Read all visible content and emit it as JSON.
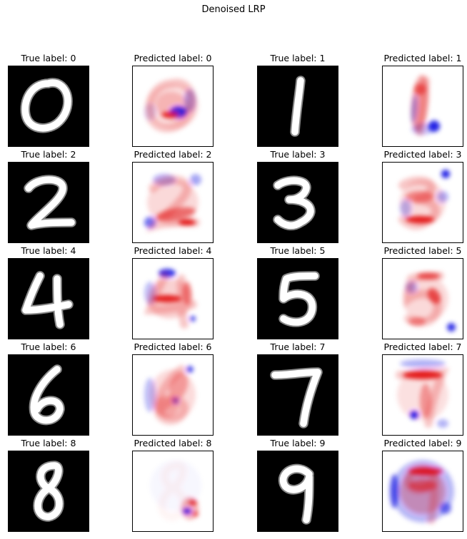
{
  "chart_data": {
    "type": "image-grid",
    "title": "Denoised LRP",
    "rows": [
      {
        "true_label": "True label: 0",
        "predicted_label": "Predicted label: 0",
        "true_image": "digit-0-grayscale",
        "heatmap": "lrp-heatmap-0"
      },
      {
        "true_label": "True label: 1",
        "predicted_label": "Predicted label: 1",
        "true_image": "digit-1-grayscale",
        "heatmap": "lrp-heatmap-1"
      },
      {
        "true_label": "True label: 2",
        "predicted_label": "Predicted label: 2",
        "true_image": "digit-2-grayscale",
        "heatmap": "lrp-heatmap-2"
      },
      {
        "true_label": "True label: 3",
        "predicted_label": "Predicted label: 3",
        "true_image": "digit-3-grayscale",
        "heatmap": "lrp-heatmap-3"
      },
      {
        "true_label": "True label: 4",
        "predicted_label": "Predicted label: 4",
        "true_image": "digit-4-grayscale",
        "heatmap": "lrp-heatmap-4"
      },
      {
        "true_label": "True label: 5",
        "predicted_label": "Predicted label: 5",
        "true_image": "digit-5-grayscale",
        "heatmap": "lrp-heatmap-5"
      },
      {
        "true_label": "True label: 6",
        "predicted_label": "Predicted label: 6",
        "true_image": "digit-6-grayscale",
        "heatmap": "lrp-heatmap-6"
      },
      {
        "true_label": "True label: 7",
        "predicted_label": "Predicted label: 7",
        "true_image": "digit-7-grayscale",
        "heatmap": "lrp-heatmap-7"
      },
      {
        "true_label": "True label: 8",
        "predicted_label": "Predicted label: 8",
        "true_image": "digit-8-grayscale",
        "heatmap": "lrp-heatmap-8"
      },
      {
        "true_label": "True label: 9",
        "predicted_label": "Predicted label: 9",
        "true_image": "digit-9-grayscale",
        "heatmap": "lrp-heatmap-9"
      }
    ],
    "colors": {
      "digit_background": "#000000",
      "digit_stroke": "#ffffff",
      "positive_relevance": "#e00000",
      "negative_relevance": "#0000e0",
      "heatmap_background": "#ffffff"
    }
  }
}
